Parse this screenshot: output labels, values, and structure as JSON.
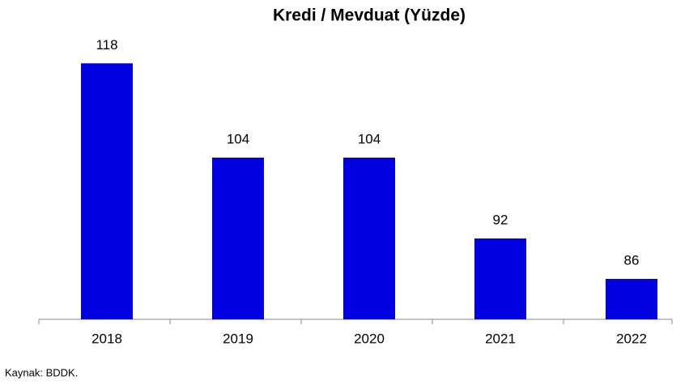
{
  "chart_data": {
    "type": "bar",
    "title": "Kredi / Mevduat (Yüzde)",
    "categories": [
      "2018",
      "2019",
      "2020",
      "2021",
      "2022"
    ],
    "values": [
      118,
      104,
      104,
      92,
      86
    ],
    "color": "#0000e0",
    "ylim": [
      80,
      122
    ],
    "source": "Kaynak: BDDK."
  }
}
